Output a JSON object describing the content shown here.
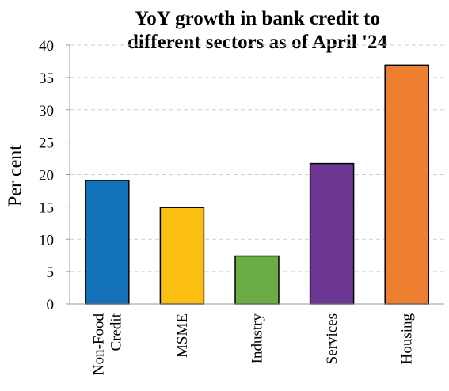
{
  "chart_data": {
    "type": "bar",
    "title_lines": [
      "YoY growth in bank credit to",
      "different sectors as of April '24"
    ],
    "ylabel": "Per cent",
    "xlabel": "",
    "ylim": [
      0,
      40
    ],
    "y_ticks": [
      0,
      5,
      10,
      15,
      20,
      25,
      30,
      35,
      40
    ],
    "grid": true,
    "categories": [
      [
        "Non-Food",
        "Credit"
      ],
      [
        "MSME"
      ],
      [
        "Industry"
      ],
      [
        "Services"
      ],
      [
        "Housing"
      ]
    ],
    "values": [
      19.1,
      14.9,
      7.4,
      21.7,
      36.9
    ],
    "colors": [
      "#1271b8",
      "#fbbf13",
      "#6bac45",
      "#6e3794",
      "#ef7f30"
    ]
  }
}
